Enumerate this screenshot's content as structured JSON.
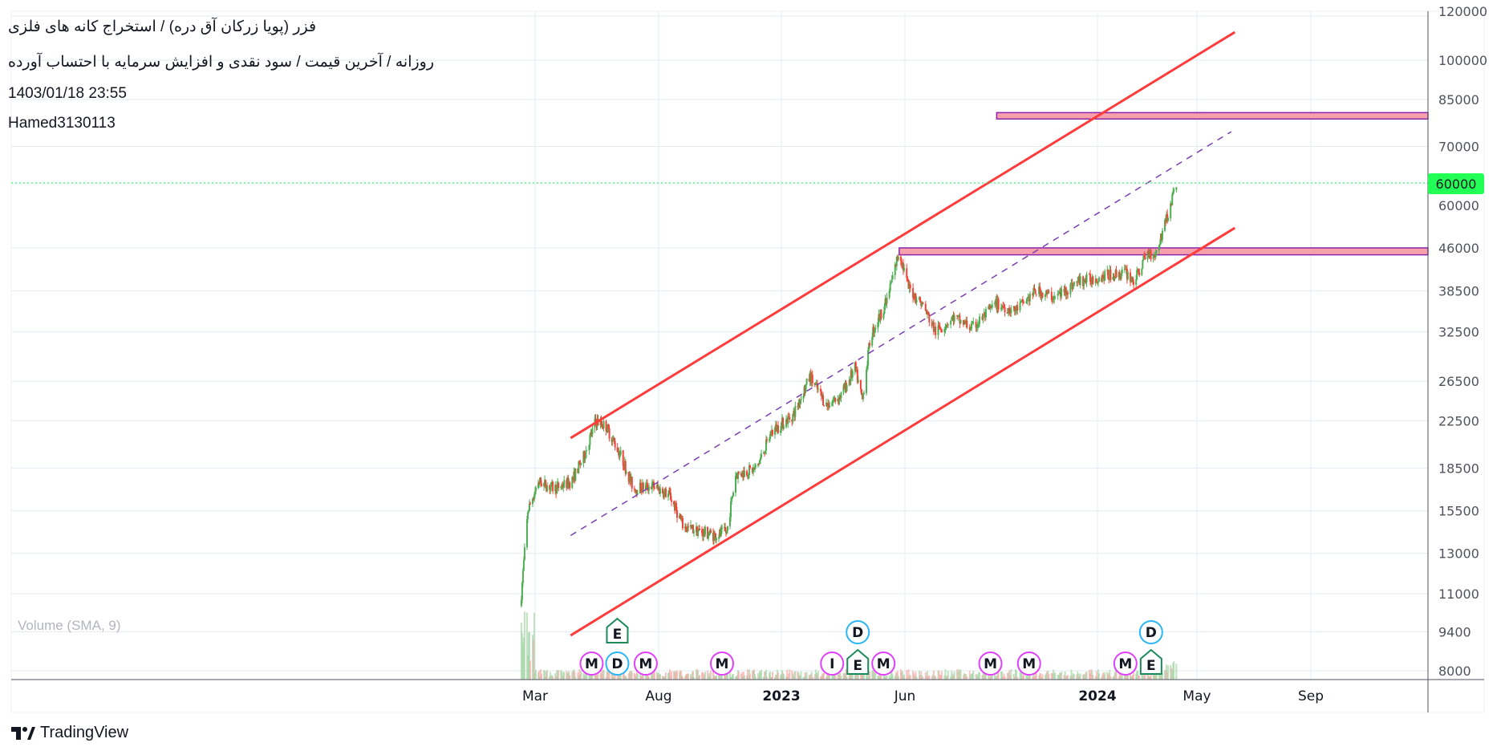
{
  "header": {
    "title": "فزر (پویا زرکان آق دره) / استخراج کانه های فلزی",
    "subtitle": "روزانه / آخرین قیمت / سود نقدی و افزایش سرمایه با احتساب آورده",
    "timestamp": "1403/01/18 23:55",
    "author": "Hamed3130113",
    "indicator": "Volume (SMA, 9)"
  },
  "footer": {
    "brand": "TradingView",
    "logo_icon": "tradingview-logo-icon"
  },
  "colors": {
    "up": "#4caf50",
    "down": "#f44336",
    "channel": "#ff3b3b",
    "midline": "#7b3fb0",
    "zone_fill": "#f5a0ab",
    "zone_border": "#8e24aa",
    "last_price": "#22ff55",
    "grid": "#e1ecf2"
  },
  "chart_data": {
    "type": "candlestick",
    "scale": "log",
    "grid": true,
    "ylim": [
      8000,
      120000
    ],
    "price_ticks": [
      "120000",
      "100000",
      "85000",
      "70000",
      "60000",
      "46000",
      "38500",
      "32500",
      "26500",
      "22500",
      "18500",
      "15500",
      "13000",
      "11000",
      "9400",
      "8000"
    ],
    "time_ticks": [
      {
        "label": "Mar",
        "date": "2022-03-01",
        "bold": false
      },
      {
        "label": "Aug",
        "date": "2022-08-01",
        "bold": false
      },
      {
        "label": "2023",
        "date": "2023-01-01",
        "bold": true
      },
      {
        "label": "Jun",
        "date": "2023-06-01",
        "bold": false
      },
      {
        "label": "2024",
        "date": "2024-01-01",
        "bold": true
      },
      {
        "label": "May",
        "date": "2024-05-01",
        "bold": false
      },
      {
        "label": "Sep",
        "date": "2024-09-01",
        "bold": false
      }
    ],
    "last_price": "60000",
    "close_path": [
      [
        "2022-02-12",
        11000
      ],
      [
        "2022-02-20",
        15500
      ],
      [
        "2022-03-05",
        17500
      ],
      [
        "2022-03-25",
        17000
      ],
      [
        "2022-04-15",
        17500
      ],
      [
        "2022-05-01",
        19500
      ],
      [
        "2022-05-15",
        22500
      ],
      [
        "2022-05-28",
        22000
      ],
      [
        "2022-06-15",
        19500
      ],
      [
        "2022-07-01",
        17000
      ],
      [
        "2022-07-25",
        17200
      ],
      [
        "2022-08-15",
        16500
      ],
      [
        "2022-09-01",
        14500
      ],
      [
        "2022-10-10",
        14000
      ],
      [
        "2022-10-25",
        14200
      ],
      [
        "2022-11-05",
        18000
      ],
      [
        "2022-12-01",
        18500
      ],
      [
        "2022-12-20",
        21500
      ],
      [
        "2023-01-15",
        23000
      ],
      [
        "2023-02-05",
        27000
      ],
      [
        "2023-02-25",
        24000
      ],
      [
        "2023-03-15",
        25000
      ],
      [
        "2023-04-01",
        28000
      ],
      [
        "2023-04-10",
        24500
      ],
      [
        "2023-04-20",
        32000
      ],
      [
        "2023-05-10",
        37000
      ],
      [
        "2023-05-25",
        45500
      ],
      [
        "2023-06-05",
        39000
      ],
      [
        "2023-06-20",
        36500
      ],
      [
        "2023-07-05",
        32500
      ],
      [
        "2023-07-25",
        34500
      ],
      [
        "2023-08-15",
        33000
      ],
      [
        "2023-09-10",
        36500
      ],
      [
        "2023-10-01",
        35500
      ],
      [
        "2023-10-25",
        38500
      ],
      [
        "2023-11-15",
        37500
      ],
      [
        "2023-12-10",
        40000
      ],
      [
        "2024-01-10",
        41000
      ],
      [
        "2024-02-05",
        41500
      ],
      [
        "2024-02-15",
        40000
      ],
      [
        "2024-03-01",
        45000
      ],
      [
        "2024-03-12",
        45000
      ],
      [
        "2024-03-25",
        52000
      ],
      [
        "2024-04-06",
        60000
      ]
    ],
    "trendlines": [
      {
        "kind": "channel-upper",
        "from": [
          "2022-04-14",
          20950
        ],
        "to": [
          "2024-06-11",
          112300
        ]
      },
      {
        "kind": "channel-lower",
        "from": [
          "2022-04-14",
          9260
        ],
        "to": [
          "2024-06-11",
          49970
        ]
      },
      {
        "kind": "midline-dashed",
        "from": [
          "2022-04-14",
          13995
        ],
        "to": [
          "2024-06-07",
          74400
        ]
      }
    ],
    "zones": [
      {
        "from": "2023-09-11",
        "top": 80500,
        "bottom": 78400
      },
      {
        "from": "2023-05-25",
        "top": 46000,
        "bottom": 44700
      }
    ],
    "events": [
      {
        "letter": "M",
        "date": "2022-05-10",
        "type": "magenta"
      },
      {
        "letter": "D",
        "date": "2022-05-16",
        "type": "dividend"
      },
      {
        "letter": "E",
        "date": "2022-05-16",
        "type": "earnings"
      },
      {
        "letter": "M",
        "date": "2022-07-16",
        "type": "magenta"
      },
      {
        "letter": "M",
        "date": "2022-10-19",
        "type": "magenta"
      },
      {
        "letter": "I",
        "date": "2023-03-04",
        "type": "magenta"
      },
      {
        "letter": "E",
        "date": "2023-03-18",
        "type": "earnings"
      },
      {
        "letter": "D",
        "date": "2023-03-18",
        "type": "dividend"
      },
      {
        "letter": "M",
        "date": "2023-04-15",
        "type": "magenta"
      },
      {
        "letter": "M",
        "date": "2023-09-04",
        "type": "magenta"
      },
      {
        "letter": "M",
        "date": "2023-10-17",
        "type": "magenta"
      },
      {
        "letter": "M",
        "date": "2024-02-04",
        "type": "magenta"
      },
      {
        "letter": "E",
        "date": "2024-02-16",
        "type": "earnings"
      },
      {
        "letter": "D",
        "date": "2024-02-16",
        "type": "dividend"
      }
    ]
  }
}
